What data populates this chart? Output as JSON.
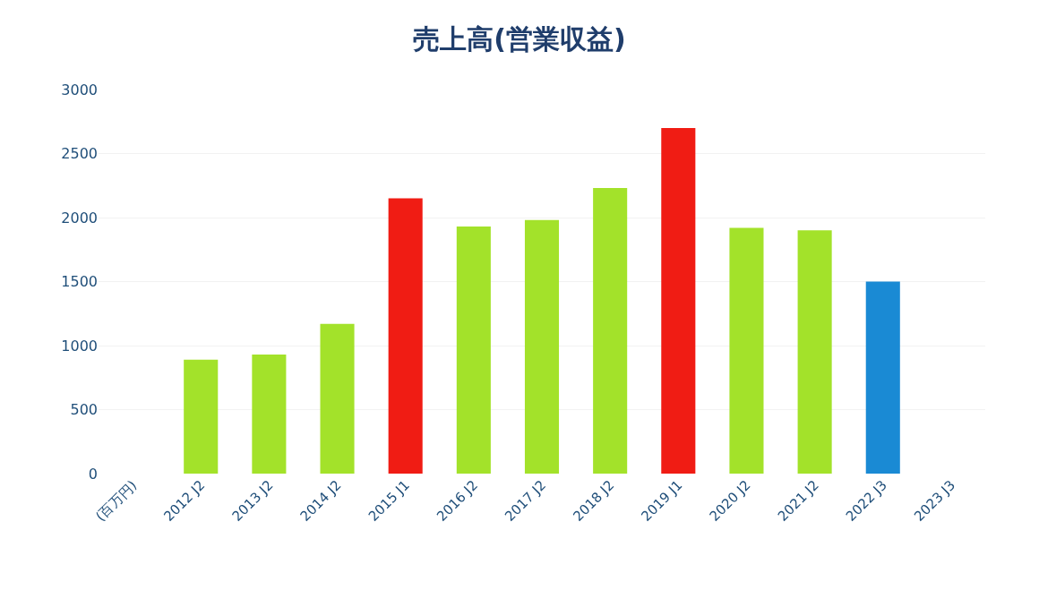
{
  "chart_data": {
    "type": "bar",
    "title": "売上高(営業収益)",
    "categories": [
      "(百万円)",
      "2012 J2",
      "2013 J2",
      "2014 J2",
      "2015 J1",
      "2016 J2",
      "2017 J2",
      "2018 J2",
      "2019 J1",
      "2020 J2",
      "2021 J2",
      "2022 J3",
      "2023 J3"
    ],
    "values": [
      null,
      890,
      930,
      1170,
      2150,
      1930,
      1980,
      2230,
      2700,
      1920,
      1900,
      1500,
      null
    ],
    "colors": [
      "#a3e22a",
      "#a3e22a",
      "#a3e22a",
      "#a3e22a",
      "#f01c14",
      "#a3e22a",
      "#a3e22a",
      "#a3e22a",
      "#f01c14",
      "#a3e22a",
      "#a3e22a",
      "#1a8ad4",
      "#1a8ad4"
    ],
    "ylim": [
      0,
      3000
    ],
    "yticks": [
      0,
      500,
      1000,
      1500,
      2000,
      2500,
      3000
    ],
    "grid": "y",
    "legend": false
  }
}
